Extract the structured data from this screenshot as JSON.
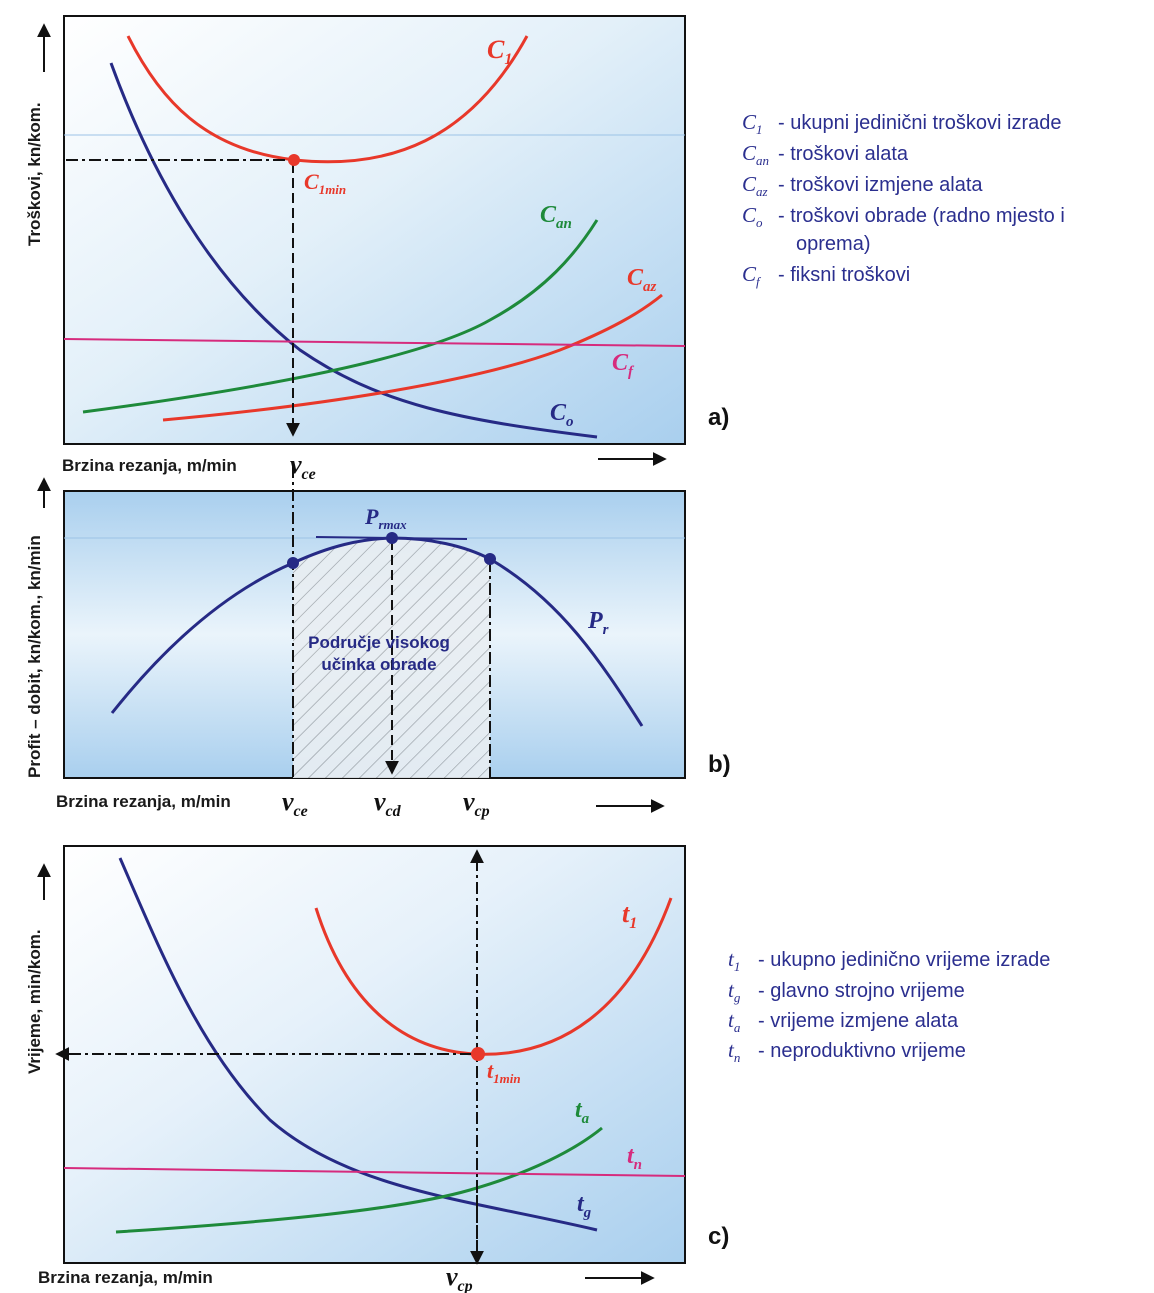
{
  "colors": {
    "navy": "#262a85",
    "red": "#e8382a",
    "green": "#1e8a3a",
    "magenta": "#d62b7d",
    "bg_light": "#dcecf7",
    "bg_blue": "#b8d7ef"
  },
  "panel_a": {
    "tag": "a)",
    "y_axis_label": "Troškovi, kn/kom.",
    "x_axis_label": "Brzina rezanja, m/min",
    "x_marker": {
      "sym": "v",
      "sub": "ce"
    },
    "curve_labels": {
      "c1": {
        "sym": "C",
        "sub": "1"
      },
      "c1min": {
        "sym": "C",
        "sub": "1min"
      },
      "can": {
        "sym": "C",
        "sub": "an"
      },
      "caz": {
        "sym": "C",
        "sub": "az"
      },
      "cf": {
        "sym": "C",
        "sub": "f"
      },
      "co": {
        "sym": "C",
        "sub": "o"
      }
    },
    "legend": [
      {
        "sym": "C",
        "sub": "1",
        "text": "- ukupni jedinični troškovi izrade"
      },
      {
        "sym": "C",
        "sub": "an",
        "text": "- troškovi alata"
      },
      {
        "sym": "C",
        "sub": "az",
        "text": "- troškovi izmjene alata"
      },
      {
        "sym": "C",
        "sub": "o",
        "text": "- troškovi obrade (radno mjesto i",
        "cont": "oprema)"
      },
      {
        "sym": "C",
        "sub": "f",
        "text": "- fiksni troškovi"
      }
    ]
  },
  "panel_b": {
    "tag": "b)",
    "y_axis_label": "Profit – dobit, kn/kom., kn/min",
    "x_axis_label": "Brzina rezanja, m/min",
    "x_markers": [
      {
        "sym": "v",
        "sub": "ce"
      },
      {
        "sym": "v",
        "sub": "cd"
      },
      {
        "sym": "v",
        "sub": "cp"
      }
    ],
    "curve_label": {
      "sym": "P",
      "sub": "r"
    },
    "max_label": {
      "sym": "P",
      "sub": "rmax"
    },
    "region_line1": "Područje visokog",
    "region_line2": "učinka obrade"
  },
  "panel_c": {
    "tag": "c)",
    "y_axis_label": "Vrijeme, min/kom.",
    "x_axis_label": "Brzina rezanja, m/min",
    "x_marker": {
      "sym": "v",
      "sub": "cp"
    },
    "curve_labels": {
      "t1": {
        "sym": "t",
        "sub": "1"
      },
      "t1min": {
        "sym": "t",
        "sub": "1min"
      },
      "ta": {
        "sym": "t",
        "sub": "a"
      },
      "tn": {
        "sym": "t",
        "sub": "n"
      },
      "tg": {
        "sym": "t",
        "sub": "g"
      }
    },
    "legend": [
      {
        "sym": "t",
        "sub": "1",
        "text": "- ukupno jedinično vrijeme izrade"
      },
      {
        "sym": "t",
        "sub": "g",
        "text": "- glavno strojno vrijeme"
      },
      {
        "sym": "t",
        "sub": "a",
        "text": "- vrijeme izmjene alata"
      },
      {
        "sym": "t",
        "sub": "n",
        "text": "- neproduktivno vrijeme"
      }
    ]
  }
}
